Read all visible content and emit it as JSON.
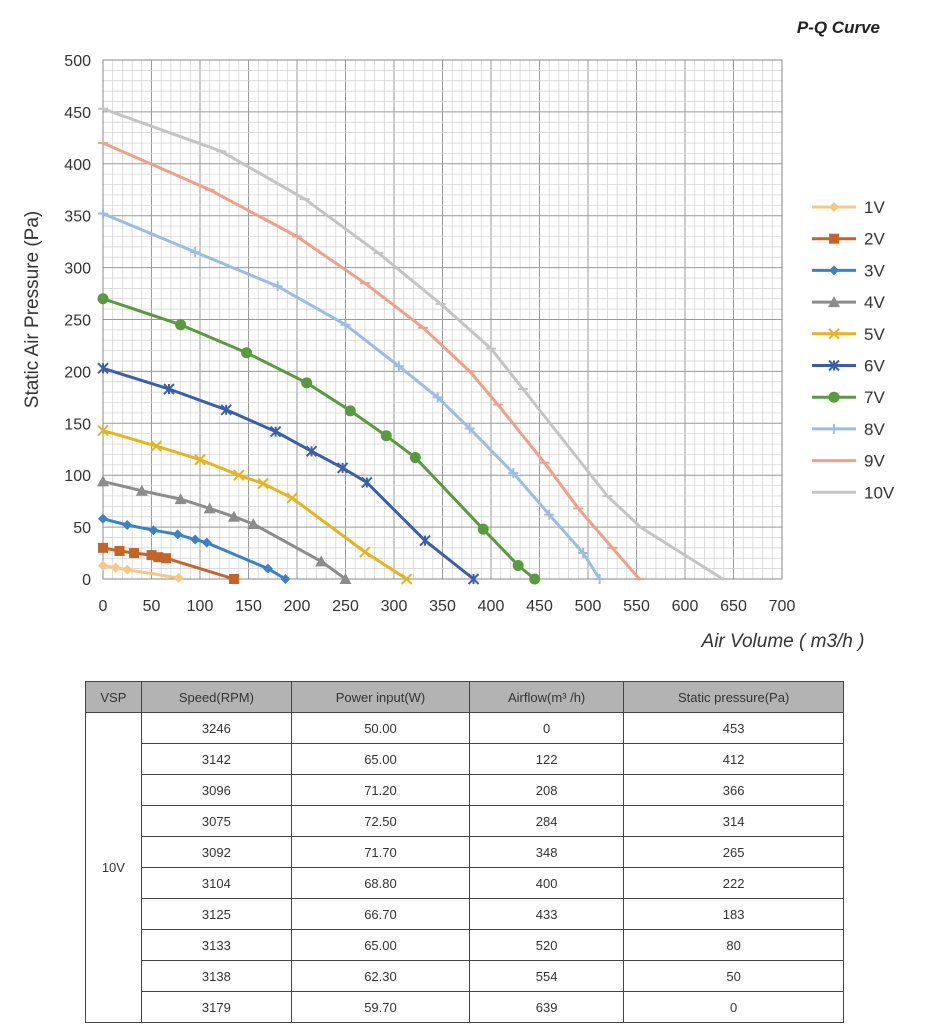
{
  "chart_data": {
    "type": "line",
    "title": "P-Q Curve",
    "xlabel": "Air Volume ( m3/h )",
    "ylabel": "Static Air Pressure  (Pa)",
    "xlim": [
      0,
      700
    ],
    "ylim": [
      0,
      500
    ],
    "x_ticks": [
      "0",
      "50",
      "100",
      "150",
      "200",
      "250",
      "300",
      "350",
      "400",
      "450",
      "500",
      "550",
      "600",
      "650",
      "700"
    ],
    "y_ticks": [
      "0",
      "50",
      "100",
      "150",
      "200",
      "250",
      "300",
      "350",
      "400",
      "450",
      "500"
    ],
    "grid": true,
    "legend_position": "right",
    "series": [
      {
        "name": "1V",
        "color": "#f9c784",
        "marker": "diamond",
        "x": [
          0,
          13,
          25,
          78
        ],
        "y": [
          13,
          11,
          9,
          1
        ]
      },
      {
        "name": "2V",
        "color": "#c5642a",
        "marker": "square",
        "x": [
          0,
          17,
          32,
          50,
          57,
          65,
          135
        ],
        "y": [
          30,
          27,
          25,
          23,
          21,
          20,
          0
        ]
      },
      {
        "name": "3V",
        "color": "#3b82c4",
        "marker": "diamond",
        "x": [
          0,
          25,
          52,
          77,
          95,
          107,
          170,
          188
        ],
        "y": [
          58,
          52,
          47,
          43,
          38,
          35,
          10,
          0
        ]
      },
      {
        "name": "4V",
        "color": "#8c8c8c",
        "marker": "triangle",
        "x": [
          0,
          40,
          80,
          110,
          135,
          155,
          225,
          250
        ],
        "y": [
          94,
          85,
          77,
          68,
          60,
          53,
          17,
          0
        ]
      },
      {
        "name": "5V",
        "color": "#e6b41e",
        "marker": "x",
        "x": [
          0,
          55,
          100,
          140,
          165,
          195,
          270,
          313
        ],
        "y": [
          143,
          128,
          115,
          100,
          92,
          78,
          26,
          0
        ]
      },
      {
        "name": "6V",
        "color": "#3a5fa8",
        "marker": "asterisk",
        "x": [
          0,
          68,
          127,
          178,
          215,
          247,
          272,
          332,
          382
        ],
        "y": [
          203,
          183,
          163,
          142,
          123,
          107,
          93,
          37,
          0
        ]
      },
      {
        "name": "7V",
        "color": "#5a9a3e",
        "marker": "circle",
        "x": [
          0,
          80,
          148,
          210,
          255,
          292,
          322,
          392,
          428,
          445
        ],
        "y": [
          270,
          245,
          218,
          189,
          162,
          138,
          117,
          48,
          13,
          0
        ]
      },
      {
        "name": "8V",
        "color": "#9bbde3",
        "marker": "plus",
        "x": [
          0,
          95,
          180,
          250,
          305,
          345,
          378,
          423,
          460,
          495,
          512
        ],
        "y": [
          352,
          315,
          282,
          245,
          205,
          175,
          145,
          102,
          62,
          25,
          0
        ]
      },
      {
        "name": "9V",
        "color": "#f0a088",
        "marker": "dash",
        "x": [
          0,
          110,
          200,
          270,
          330,
          378,
          407,
          455,
          490,
          525,
          553
        ],
        "y": [
          420,
          375,
          330,
          285,
          242,
          200,
          168,
          112,
          68,
          30,
          0
        ]
      },
      {
        "name": "10V",
        "color": "#c4c4c4",
        "marker": "dash",
        "x": [
          0,
          122,
          208,
          284,
          348,
          400,
          433,
          520,
          554,
          639
        ],
        "y": [
          453,
          412,
          366,
          314,
          265,
          222,
          183,
          80,
          50,
          0
        ]
      }
    ]
  },
  "table": {
    "headers": [
      "VSP",
      "Speed(RPM)",
      "Power input(W)",
      "Airflow(m³ /h)",
      "Static pressure(Pa)"
    ],
    "vsp_label": "10V",
    "rows": [
      [
        "3246",
        "50.00",
        "0",
        "453"
      ],
      [
        "3142",
        "65.00",
        "122",
        "412"
      ],
      [
        "3096",
        "71.20",
        "208",
        "366"
      ],
      [
        "3075",
        "72.50",
        "284",
        "314"
      ],
      [
        "3092",
        "71.70",
        "348",
        "265"
      ],
      [
        "3104",
        "68.80",
        "400",
        "222"
      ],
      [
        "3125",
        "66.70",
        "433",
        "183"
      ],
      [
        "3133",
        "65.00",
        "520",
        "80"
      ],
      [
        "3138",
        "62.30",
        "554",
        "50"
      ],
      [
        "3179",
        "59.70",
        "639",
        "0"
      ]
    ]
  }
}
